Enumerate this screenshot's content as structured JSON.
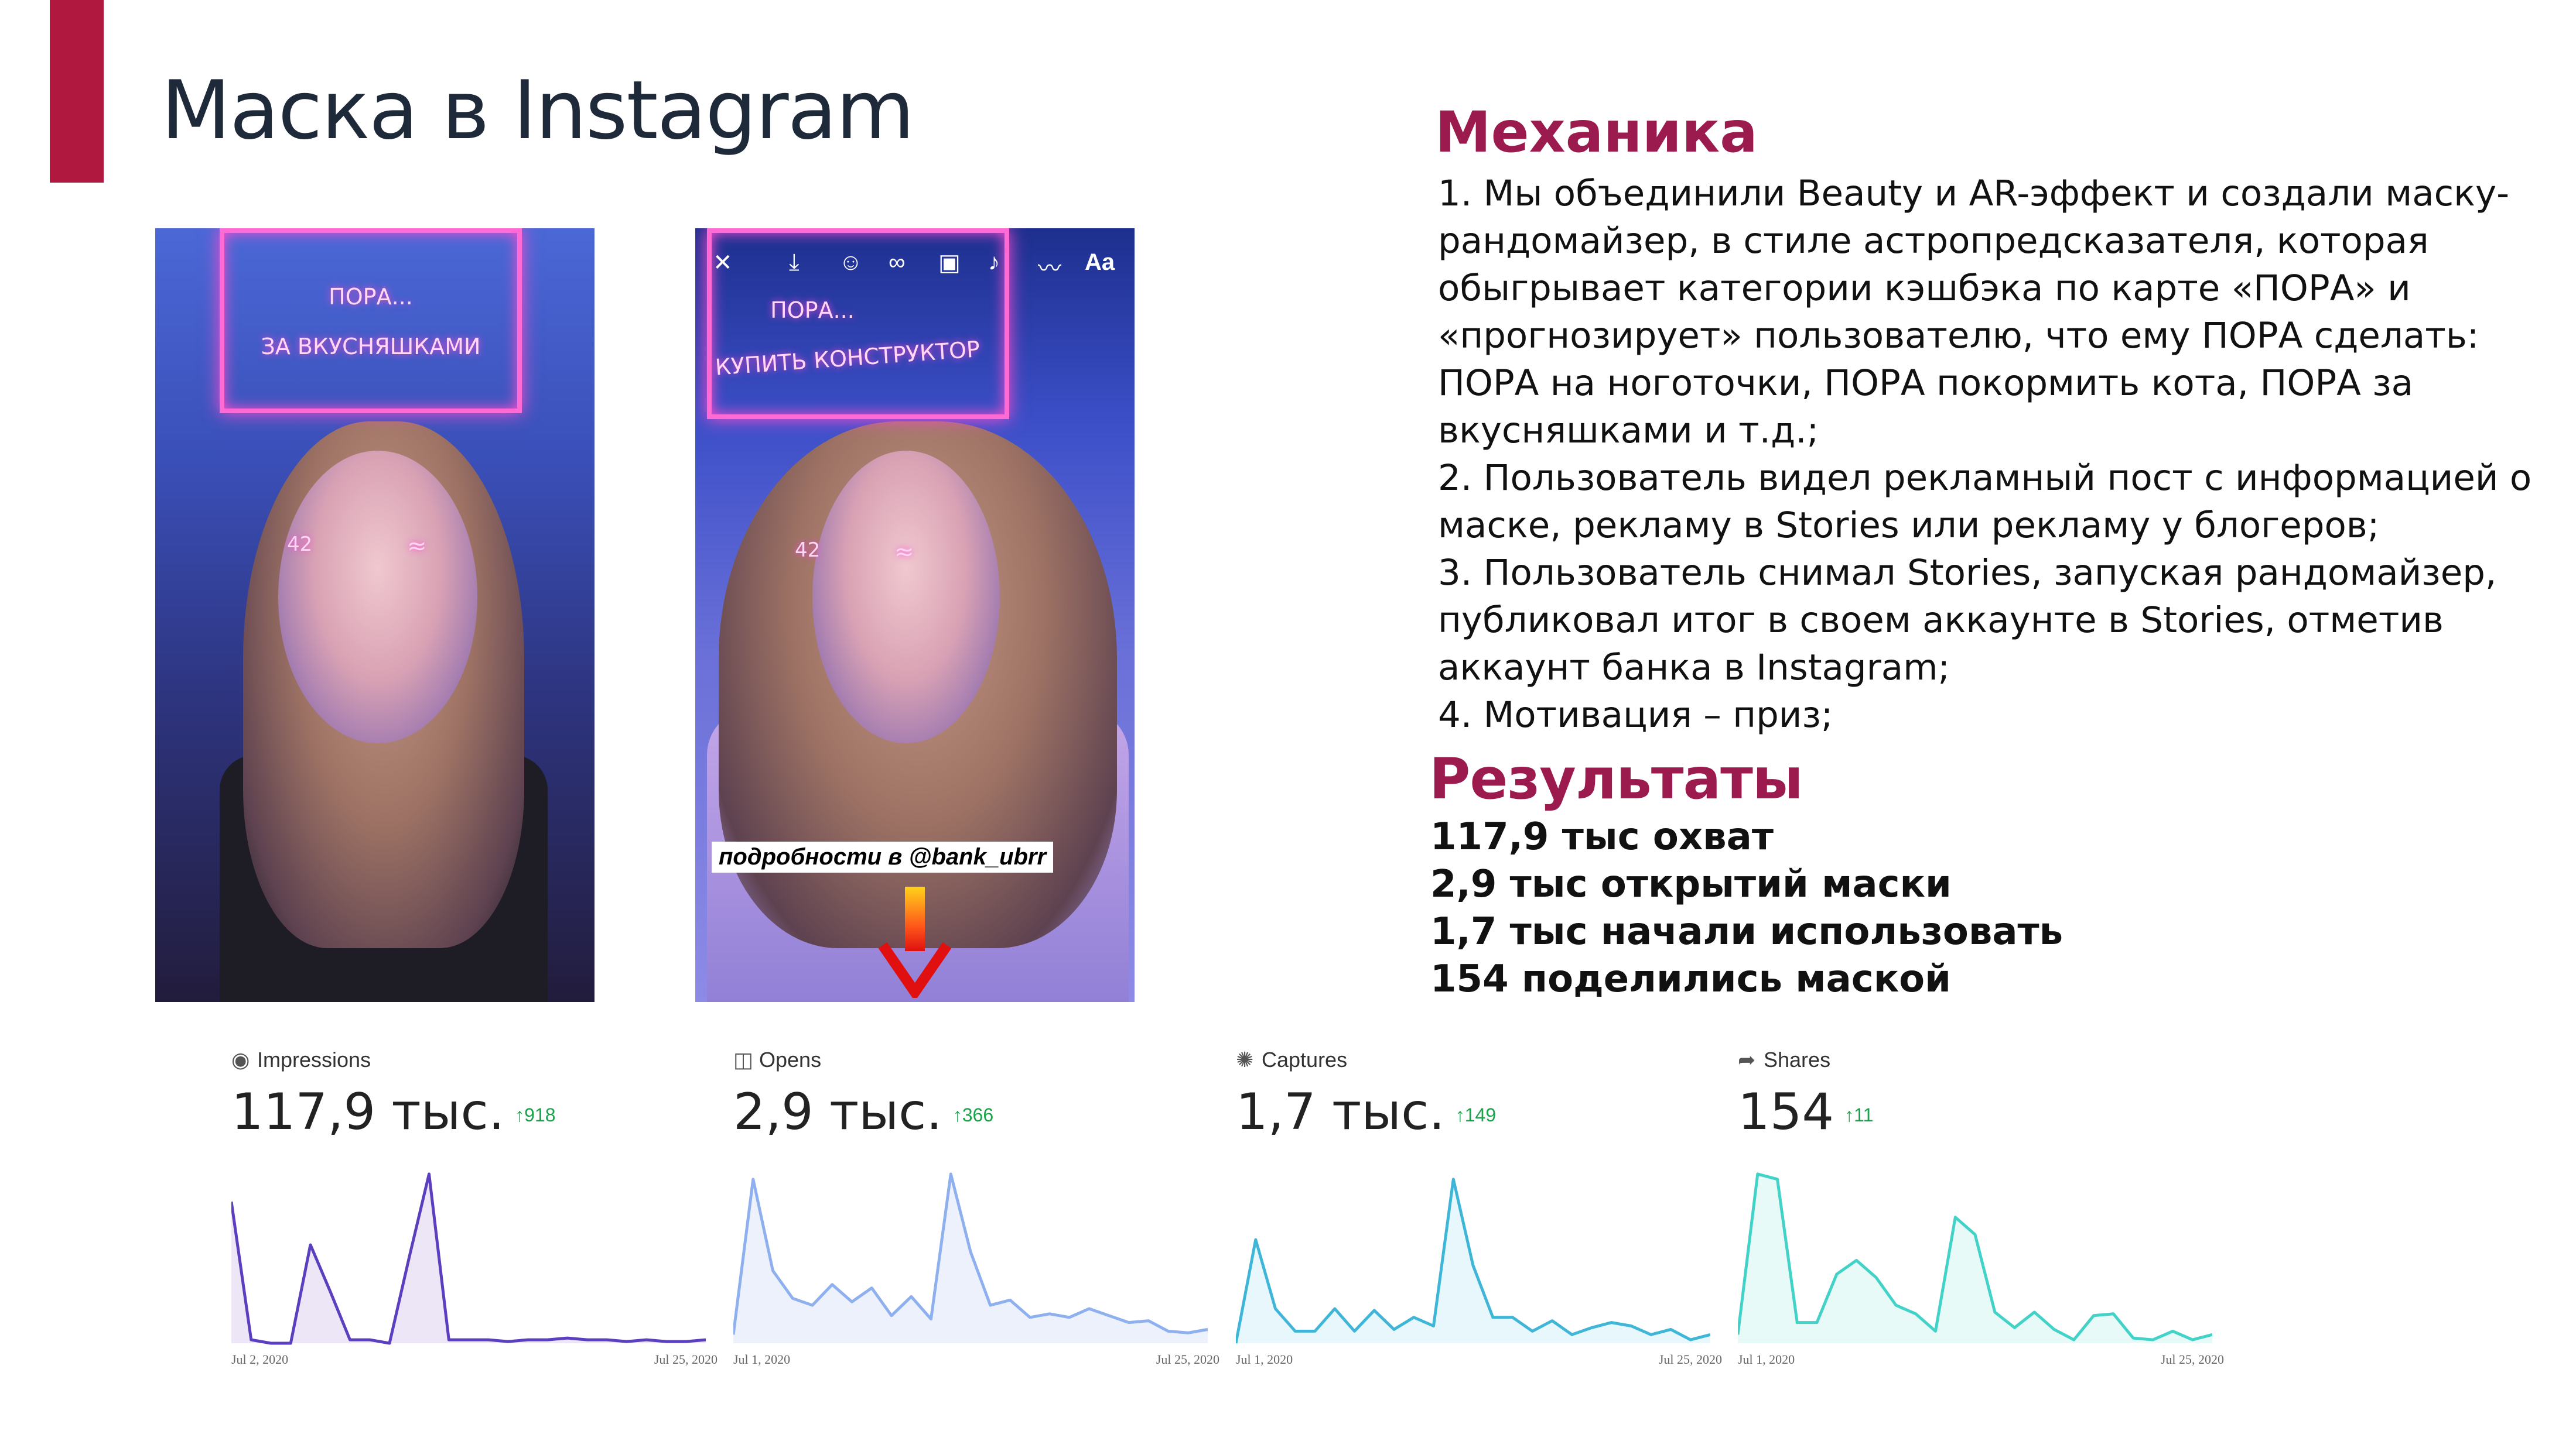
{
  "slide": {
    "title": "Маска в Instagram",
    "accent_color": "#b0183f",
    "heading_color": "#9b1b4f"
  },
  "photo1": {
    "neon_line1": "ПОРА...",
    "neon_line2": "ЗА ВКУСНЯШКАМИ",
    "cheek_left": "42",
    "cheek_right": "≈"
  },
  "photo2": {
    "neon_line1": "ПОРА...",
    "neon_line2": "КУПИТЬ КОНСТРУКТОР",
    "toolbar_text": "Aa",
    "mention": "подробности в @bank_ubrr",
    "cheek_left": "42",
    "cheek_right": "≈"
  },
  "mechanics": {
    "heading": "Механика",
    "items": [
      "1. Мы объединили Beauty и AR-эффект и создали маску-рандомайзер, в стиле астропредсказателя, которая обыгрывает категории кэшбэка по карте «ПОРА» и «прогнозирует» пользователю, что ему ПОРА сделать: ПОРА на ноготочки, ПОРА покормить кота, ПОРА за вкусняшками и т.д.;",
      "2. Пользователь видел рекламный пост с информацией о маске, рекламу в Stories или рекламу у блогеров;",
      "3. Пользователь снимал Stories, запуская рандомайзер, публиковал итог в своем аккаунте в Stories, отметив аккаунт банка в Instagram;",
      "4. Мотивация – приз;"
    ]
  },
  "results": {
    "heading": "Результаты",
    "items": [
      "117,9 тыс охват",
      "2,9 тыс открытий маски",
      "1,7 тыс начали использовать",
      "154 поделились маской"
    ]
  },
  "chart_data": [
    {
      "type": "area",
      "label": "Impressions",
      "icon": "eye-icon",
      "value": "117,9 тыс.",
      "delta": "918",
      "x_start": "Jul 2, 2020",
      "x_end": "Jul 25, 2020",
      "color": "#5b3fbf",
      "fill": "#ece6f7",
      "values": [
        0.82,
        0.02,
        0.0,
        0.0,
        0.57,
        0.3,
        0.02,
        0.02,
        0.0,
        0.5,
        0.98,
        0.02,
        0.02,
        0.02,
        0.01,
        0.02,
        0.02,
        0.03,
        0.02,
        0.02,
        0.01,
        0.02,
        0.01,
        0.01,
        0.02
      ]
    },
    {
      "type": "area",
      "label": "Opens",
      "icon": "camera-icon",
      "value": "2,9 тыс.",
      "delta": "366",
      "x_start": "Jul 1, 2020",
      "x_end": "Jul 25, 2020",
      "color": "#8fb0ee",
      "fill": "#edf1fc",
      "values": [
        0.05,
        0.95,
        0.42,
        0.26,
        0.22,
        0.34,
        0.24,
        0.32,
        0.16,
        0.27,
        0.14,
        0.98,
        0.53,
        0.22,
        0.25,
        0.15,
        0.17,
        0.15,
        0.2,
        0.16,
        0.12,
        0.13,
        0.07,
        0.06,
        0.08
      ]
    },
    {
      "type": "area",
      "label": "Captures",
      "icon": "aperture-icon",
      "value": "1,7 тыс.",
      "delta": "149",
      "x_start": "Jul 1, 2020",
      "x_end": "Jul 25, 2020",
      "color": "#3fb6d8",
      "fill": "#e8f7fb",
      "values": [
        0.0,
        0.6,
        0.2,
        0.07,
        0.07,
        0.2,
        0.07,
        0.19,
        0.08,
        0.15,
        0.1,
        0.95,
        0.45,
        0.15,
        0.15,
        0.07,
        0.13,
        0.05,
        0.09,
        0.12,
        0.1,
        0.05,
        0.08,
        0.02,
        0.05
      ]
    },
    {
      "type": "area",
      "label": "Shares",
      "icon": "share-icon",
      "value": "154",
      "delta": "11",
      "x_start": "Jul 1, 2020",
      "x_end": "Jul 25, 2020",
      "color": "#42d2c8",
      "fill": "#e8faf8",
      "values": [
        0.05,
        0.98,
        0.95,
        0.12,
        0.12,
        0.4,
        0.48,
        0.38,
        0.22,
        0.17,
        0.07,
        0.73,
        0.63,
        0.18,
        0.09,
        0.18,
        0.08,
        0.02,
        0.16,
        0.17,
        0.03,
        0.02,
        0.07,
        0.02,
        0.05
      ]
    }
  ]
}
